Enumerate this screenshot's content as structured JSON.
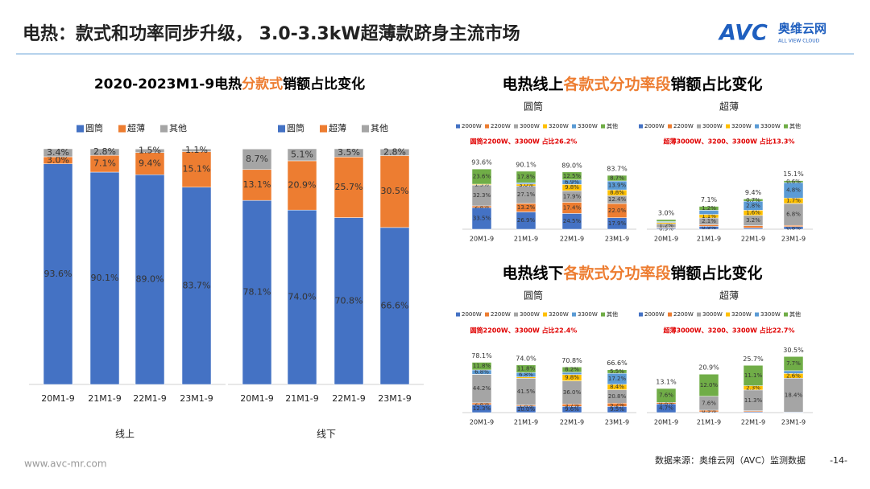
{
  "header": {
    "title": "电热：款式和功率同步升级， 3.0-3.3kW超薄款跻身主流市场",
    "logo_mark": "AVC",
    "logo_cn": "奥维云网",
    "logo_en": "ALL VIEW CLOUD"
  },
  "footer": {
    "url": "www.avc-mr.com",
    "source": "数据来源：奥维云网（AVC）监测数据",
    "page": "-14-"
  },
  "chart_data": [
    {
      "type": "bar",
      "stacked": true,
      "title": [
        "2020-2023M1-9电热",
        "分款式",
        "销额占比变化"
      ],
      "title_colors": [
        "#000000",
        "#ed7d31",
        "#000000"
      ],
      "xlabel": "线上",
      "categories": [
        "20M1-9",
        "21M1-9",
        "22M1-9",
        "23M1-9"
      ],
      "ylim": [
        0,
        100
      ],
      "series": [
        {
          "name": "圆筒",
          "color": "#4472c4",
          "values": [
            93.6,
            90.1,
            89.0,
            83.7
          ],
          "value_labels": [
            "93.6%",
            "90.1%",
            "89.0%",
            "83.7%"
          ]
        },
        {
          "name": "超薄",
          "color": "#ed7d31",
          "values": [
            3.0,
            7.1,
            9.4,
            15.1
          ],
          "value_labels": [
            "3.0%",
            "7.1%",
            "9.4%",
            "15.1%"
          ]
        },
        {
          "name": "其他",
          "color": "#a5a5a5",
          "values": [
            3.4,
            2.8,
            1.5,
            1.1
          ],
          "value_labels": [
            "3.4%",
            "2.8%",
            "1.5%",
            "1.1%"
          ]
        }
      ]
    },
    {
      "type": "bar",
      "stacked": true,
      "xlabel": "线下",
      "categories": [
        "20M1-9",
        "21M1-9",
        "22M1-9",
        "23M1-9"
      ],
      "ylim": [
        0,
        100
      ],
      "series": [
        {
          "name": "圆筒",
          "color": "#4472c4",
          "values": [
            78.1,
            74.0,
            70.8,
            66.6
          ],
          "value_labels": [
            "78.1%",
            "74.0%",
            "70.8%",
            "66.6%"
          ]
        },
        {
          "name": "超薄",
          "color": "#ed7d31",
          "values": [
            13.1,
            20.9,
            25.7,
            30.5
          ],
          "value_labels": [
            "13.1%",
            "20.9%",
            "25.7%",
            "30.5%"
          ]
        },
        {
          "name": "其他",
          "color": "#a5a5a5",
          "values": [
            8.7,
            5.1,
            3.5,
            2.8
          ],
          "value_labels": [
            "8.7%",
            "5.1%",
            "3.5%",
            "2.8%"
          ]
        }
      ]
    },
    {
      "type": "bar",
      "stacked": true,
      "title": [
        "电热线上",
        "各款式分功率段",
        "销额占比变化"
      ],
      "title_colors": [
        "#000000",
        "#ed7d31",
        "#000000"
      ],
      "subtitle": "圆筒",
      "annotation": "圆筒2200W、3300W 占比26.2%",
      "categories": [
        "20M1-9",
        "21M1-9",
        "22M1-9",
        "23M1-9"
      ],
      "ylim": [
        0,
        100
      ],
      "totals": [
        93.6,
        90.1,
        89.0,
        83.7
      ],
      "total_labels": [
        "93.6%",
        "90.1%",
        "89.0%",
        "83.7%"
      ],
      "series": [
        {
          "name": "2000W",
          "color": "#4472c4",
          "values": [
            33.5,
            26.9,
            24.5,
            17.9
          ],
          "value_labels": [
            "33.5%",
            "26.9%",
            "24.5%",
            "17.9%"
          ]
        },
        {
          "name": "2200W",
          "color": "#ed7d31",
          "values": [
            2.8,
            13.2,
            17.4,
            22.0
          ],
          "value_labels": [
            "2.8%",
            "13.2%",
            "17.4%",
            "22.0%"
          ]
        },
        {
          "name": "3000W",
          "color": "#a5a5a5",
          "values": [
            32.3,
            27.1,
            17.9,
            12.4
          ],
          "value_labels": [
            "32.3%",
            "27.1%",
            "17.9%",
            "12.4%"
          ]
        },
        {
          "name": "3200W",
          "color": "#ffc000",
          "values": [
            1.3,
            3.0,
            9.8,
            8.8
          ],
          "value_labels": [
            "1.3%",
            "3.0%",
            "9.8%",
            "8.8%"
          ]
        },
        {
          "name": "3300W",
          "color": "#5b9bd5",
          "values": [
            0.1,
            2.1,
            6.9,
            13.9
          ],
          "value_labels": [
            null,
            null,
            "6.9%",
            "13.9%"
          ]
        },
        {
          "name": "其他",
          "color": "#70ad47",
          "values": [
            23.6,
            17.8,
            12.5,
            8.7
          ],
          "value_labels": [
            "23.6%",
            "17.8%",
            "12.5%",
            "8.7%"
          ]
        }
      ]
    },
    {
      "type": "bar",
      "stacked": true,
      "subtitle": "超薄",
      "annotation": "超薄3000W、3200、3300W 占比13.3%",
      "categories": [
        "20M1-9",
        "21M1-9",
        "22M1-9",
        "23M1-9"
      ],
      "ylim": [
        0,
        20
      ],
      "totals": [
        3.0,
        7.1,
        9.4,
        15.1
      ],
      "total_labels": [
        "3.0%",
        "7.1%",
        "9.4%",
        "15.1%"
      ],
      "series": [
        {
          "name": "2000W",
          "color": "#4472c4",
          "values": [
            0.3,
            0.9,
            0.4,
            0.8
          ],
          "value_labels": [
            "0.3%",
            "0.9%",
            null,
            "0.8%"
          ]
        },
        {
          "name": "2200W",
          "color": "#ed7d31",
          "values": [
            0.2,
            0.5,
            0.7,
            0.4
          ],
          "value_labels": [
            null,
            null,
            null,
            null
          ]
        },
        {
          "name": "3000W",
          "color": "#a5a5a5",
          "values": [
            1.2,
            2.1,
            3.2,
            6.8
          ],
          "value_labels": [
            "1.2%",
            "2.1%",
            "3.2%",
            "6.8%"
          ]
        },
        {
          "name": "3200W",
          "color": "#ffc000",
          "values": [
            0.4,
            1.1,
            1.6,
            1.7
          ],
          "value_labels": [
            null,
            "1.1%",
            "1.6%",
            "1.7%"
          ]
        },
        {
          "name": "3300W",
          "color": "#5b9bd5",
          "values": [
            0.3,
            1.3,
            2.8,
            4.8
          ],
          "value_labels": [
            null,
            null,
            "2.8%",
            "4.8%"
          ]
        },
        {
          "name": "其他",
          "color": "#70ad47",
          "values": [
            0.6,
            1.2,
            0.7,
            0.6
          ],
          "value_labels": [
            null,
            "1.2%",
            "0.7%",
            "0.6%"
          ]
        }
      ]
    },
    {
      "type": "bar",
      "stacked": true,
      "title": [
        "电热线下",
        "各款式分功率段",
        "销额占比变化"
      ],
      "title_colors": [
        "#000000",
        "#ed7d31",
        "#000000"
      ],
      "subtitle": "圆筒",
      "annotation": "圆筒2200W、3300W 占比22.4%",
      "categories": [
        "20M1-9",
        "21M1-9",
        "22M1-9",
        "23M1-9"
      ],
      "ylim": [
        0,
        100
      ],
      "totals": [
        78.1,
        74.0,
        70.8,
        66.6
      ],
      "total_labels": [
        "78.1%",
        "74.0%",
        "70.8%",
        "66.6%"
      ],
      "series": [
        {
          "name": "2000W",
          "color": "#4472c4",
          "values": [
            12.3,
            10.0,
            9.6,
            9.5
          ],
          "value_labels": [
            "12.3%",
            "10.0%",
            "9.6%",
            "9.5%"
          ]
        },
        {
          "name": "2200W",
          "color": "#ed7d31",
          "values": [
            2.8,
            1.8,
            3.7,
            5.2
          ],
          "value_labels": [
            "2.8%",
            "1.8%",
            "3.7%",
            "5.2%"
          ]
        },
        {
          "name": "3000W",
          "color": "#a5a5a5",
          "values": [
            44.2,
            41.5,
            36.0,
            20.8
          ],
          "value_labels": [
            "44.2%",
            "41.5%",
            "36.0%",
            "20.8%"
          ]
        },
        {
          "name": "3200W",
          "color": "#ffc000",
          "values": [
            0.2,
            2.1,
            9.8,
            8.4
          ],
          "value_labels": [
            null,
            null,
            "9.8%",
            "8.4%"
          ]
        },
        {
          "name": "3300W",
          "color": "#5b9bd5",
          "values": [
            6.8,
            6.8,
            3.5,
            17.2
          ],
          "value_labels": [
            "6.8%",
            "6.8%",
            null,
            "17.2%"
          ]
        },
        {
          "name": "其他",
          "color": "#70ad47",
          "values": [
            11.8,
            11.8,
            8.2,
            5.5
          ],
          "value_labels": [
            "11.8%",
            "11.8%",
            "8.2%",
            "5.5%"
          ]
        }
      ]
    },
    {
      "type": "bar",
      "stacked": true,
      "subtitle": "超薄",
      "annotation": "超薄3000W、3200、3300W 占比22.7%",
      "categories": [
        "20M1-9",
        "21M1-9",
        "22M1-9",
        "23M1-9"
      ],
      "ylim": [
        0,
        35
      ],
      "totals": [
        13.1,
        20.9,
        25.7,
        30.5
      ],
      "total_labels": [
        "13.1%",
        "20.9%",
        "25.7%",
        "30.5%"
      ],
      "series": [
        {
          "name": "2000W",
          "color": "#4472c4",
          "values": [
            4.7,
            0.4,
            0.5,
            0.3
          ],
          "value_labels": [
            "4.7%",
            null,
            null,
            null
          ]
        },
        {
          "name": "2200W",
          "color": "#ed7d31",
          "values": [
            0.8,
            0.9,
            0.5,
            0
          ],
          "value_labels": [
            "0.8%",
            "0.9%",
            null,
            null
          ]
        },
        {
          "name": "3000W",
          "color": "#a5a5a5",
          "values": [
            0,
            7.6,
            11.3,
            18.4
          ],
          "value_labels": [
            null,
            "7.6%",
            "11.3%",
            "18.4%"
          ]
        },
        {
          "name": "3200W",
          "color": "#ffc000",
          "values": [
            0,
            0,
            2.3,
            2.6
          ],
          "value_labels": [
            null,
            null,
            "2.3%",
            "2.6%"
          ]
        },
        {
          "name": "3300W",
          "color": "#5b9bd5",
          "values": [
            0,
            0,
            0,
            1.5
          ],
          "value_labels": [
            null,
            null,
            null,
            null
          ]
        },
        {
          "name": "其他",
          "color": "#70ad47",
          "values": [
            7.6,
            12.0,
            11.1,
            7.7
          ],
          "value_labels": [
            "7.6%",
            "12.0%",
            "11.1%",
            "7.7%"
          ]
        }
      ]
    }
  ]
}
